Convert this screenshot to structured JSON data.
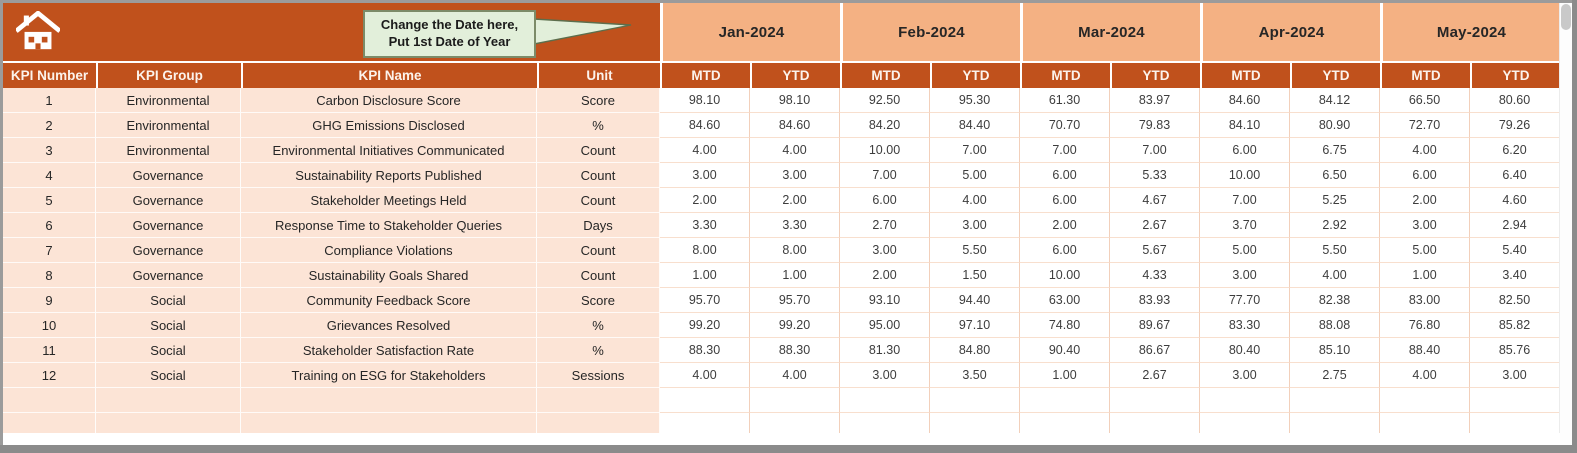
{
  "banner": {
    "home_icon": "home",
    "callout": {
      "line1": "Change the Date here,",
      "line2": "Put 1st Date of Year"
    }
  },
  "colors": {
    "rust": "#C0511C",
    "peach": "#F4B183",
    "row_peach": "#FCE4D6",
    "callout_green": "#E2EFDA"
  },
  "table": {
    "left_headers": [
      "KPI Number",
      "KPI Group",
      "KPI Name",
      "Unit"
    ],
    "months": [
      "Jan-2024",
      "Feb-2024",
      "Mar-2024",
      "Apr-2024",
      "May-2024"
    ],
    "sub_headers": [
      "MTD",
      "YTD"
    ],
    "rows": [
      {
        "num": "1",
        "group": "Environmental",
        "name": "Carbon Disclosure Score",
        "unit": "Score",
        "values": [
          "98.10",
          "98.10",
          "92.50",
          "95.30",
          "61.30",
          "83.97",
          "84.60",
          "84.12",
          "66.50",
          "80.60"
        ]
      },
      {
        "num": "2",
        "group": "Environmental",
        "name": "GHG Emissions Disclosed",
        "unit": "%",
        "values": [
          "84.60",
          "84.60",
          "84.20",
          "84.40",
          "70.70",
          "79.83",
          "84.10",
          "80.90",
          "72.70",
          "79.26"
        ]
      },
      {
        "num": "3",
        "group": "Environmental",
        "name": "Environmental Initiatives Communicated",
        "unit": "Count",
        "values": [
          "4.00",
          "4.00",
          "10.00",
          "7.00",
          "7.00",
          "7.00",
          "6.00",
          "6.75",
          "4.00",
          "6.20"
        ]
      },
      {
        "num": "4",
        "group": "Governance",
        "name": "Sustainability Reports Published",
        "unit": "Count",
        "values": [
          "3.00",
          "3.00",
          "7.00",
          "5.00",
          "6.00",
          "5.33",
          "10.00",
          "6.50",
          "6.00",
          "6.40"
        ]
      },
      {
        "num": "5",
        "group": "Governance",
        "name": "Stakeholder Meetings Held",
        "unit": "Count",
        "values": [
          "2.00",
          "2.00",
          "6.00",
          "4.00",
          "6.00",
          "4.67",
          "7.00",
          "5.25",
          "2.00",
          "4.60"
        ]
      },
      {
        "num": "6",
        "group": "Governance",
        "name": "Response Time to Stakeholder Queries",
        "unit": "Days",
        "values": [
          "3.30",
          "3.30",
          "2.70",
          "3.00",
          "2.00",
          "2.67",
          "3.70",
          "2.92",
          "3.00",
          "2.94"
        ]
      },
      {
        "num": "7",
        "group": "Governance",
        "name": "Compliance Violations",
        "unit": "Count",
        "values": [
          "8.00",
          "8.00",
          "3.00",
          "5.50",
          "6.00",
          "5.67",
          "5.00",
          "5.50",
          "5.00",
          "5.40"
        ]
      },
      {
        "num": "8",
        "group": "Governance",
        "name": "Sustainability Goals Shared",
        "unit": "Count",
        "values": [
          "1.00",
          "1.00",
          "2.00",
          "1.50",
          "10.00",
          "4.33",
          "3.00",
          "4.00",
          "1.00",
          "3.40"
        ]
      },
      {
        "num": "9",
        "group": "Social",
        "name": "Community Feedback Score",
        "unit": "Score",
        "values": [
          "95.70",
          "95.70",
          "93.10",
          "94.40",
          "63.00",
          "83.93",
          "77.70",
          "82.38",
          "83.00",
          "82.50"
        ]
      },
      {
        "num": "10",
        "group": "Social",
        "name": "Grievances Resolved",
        "unit": "%",
        "values": [
          "99.20",
          "99.20",
          "95.00",
          "97.10",
          "74.80",
          "89.67",
          "83.30",
          "88.08",
          "76.80",
          "85.82"
        ]
      },
      {
        "num": "11",
        "group": "Social",
        "name": "Stakeholder Satisfaction Rate",
        "unit": "%",
        "values": [
          "88.30",
          "88.30",
          "81.30",
          "84.80",
          "90.40",
          "86.67",
          "80.40",
          "85.10",
          "88.40",
          "85.76"
        ]
      },
      {
        "num": "12",
        "group": "Social",
        "name": "Training on ESG for Stakeholders",
        "unit": "Sessions",
        "values": [
          "4.00",
          "4.00",
          "3.00",
          "3.50",
          "1.00",
          "2.67",
          "3.00",
          "2.75",
          "4.00",
          "3.00"
        ]
      }
    ],
    "empty_row_count": 2
  }
}
